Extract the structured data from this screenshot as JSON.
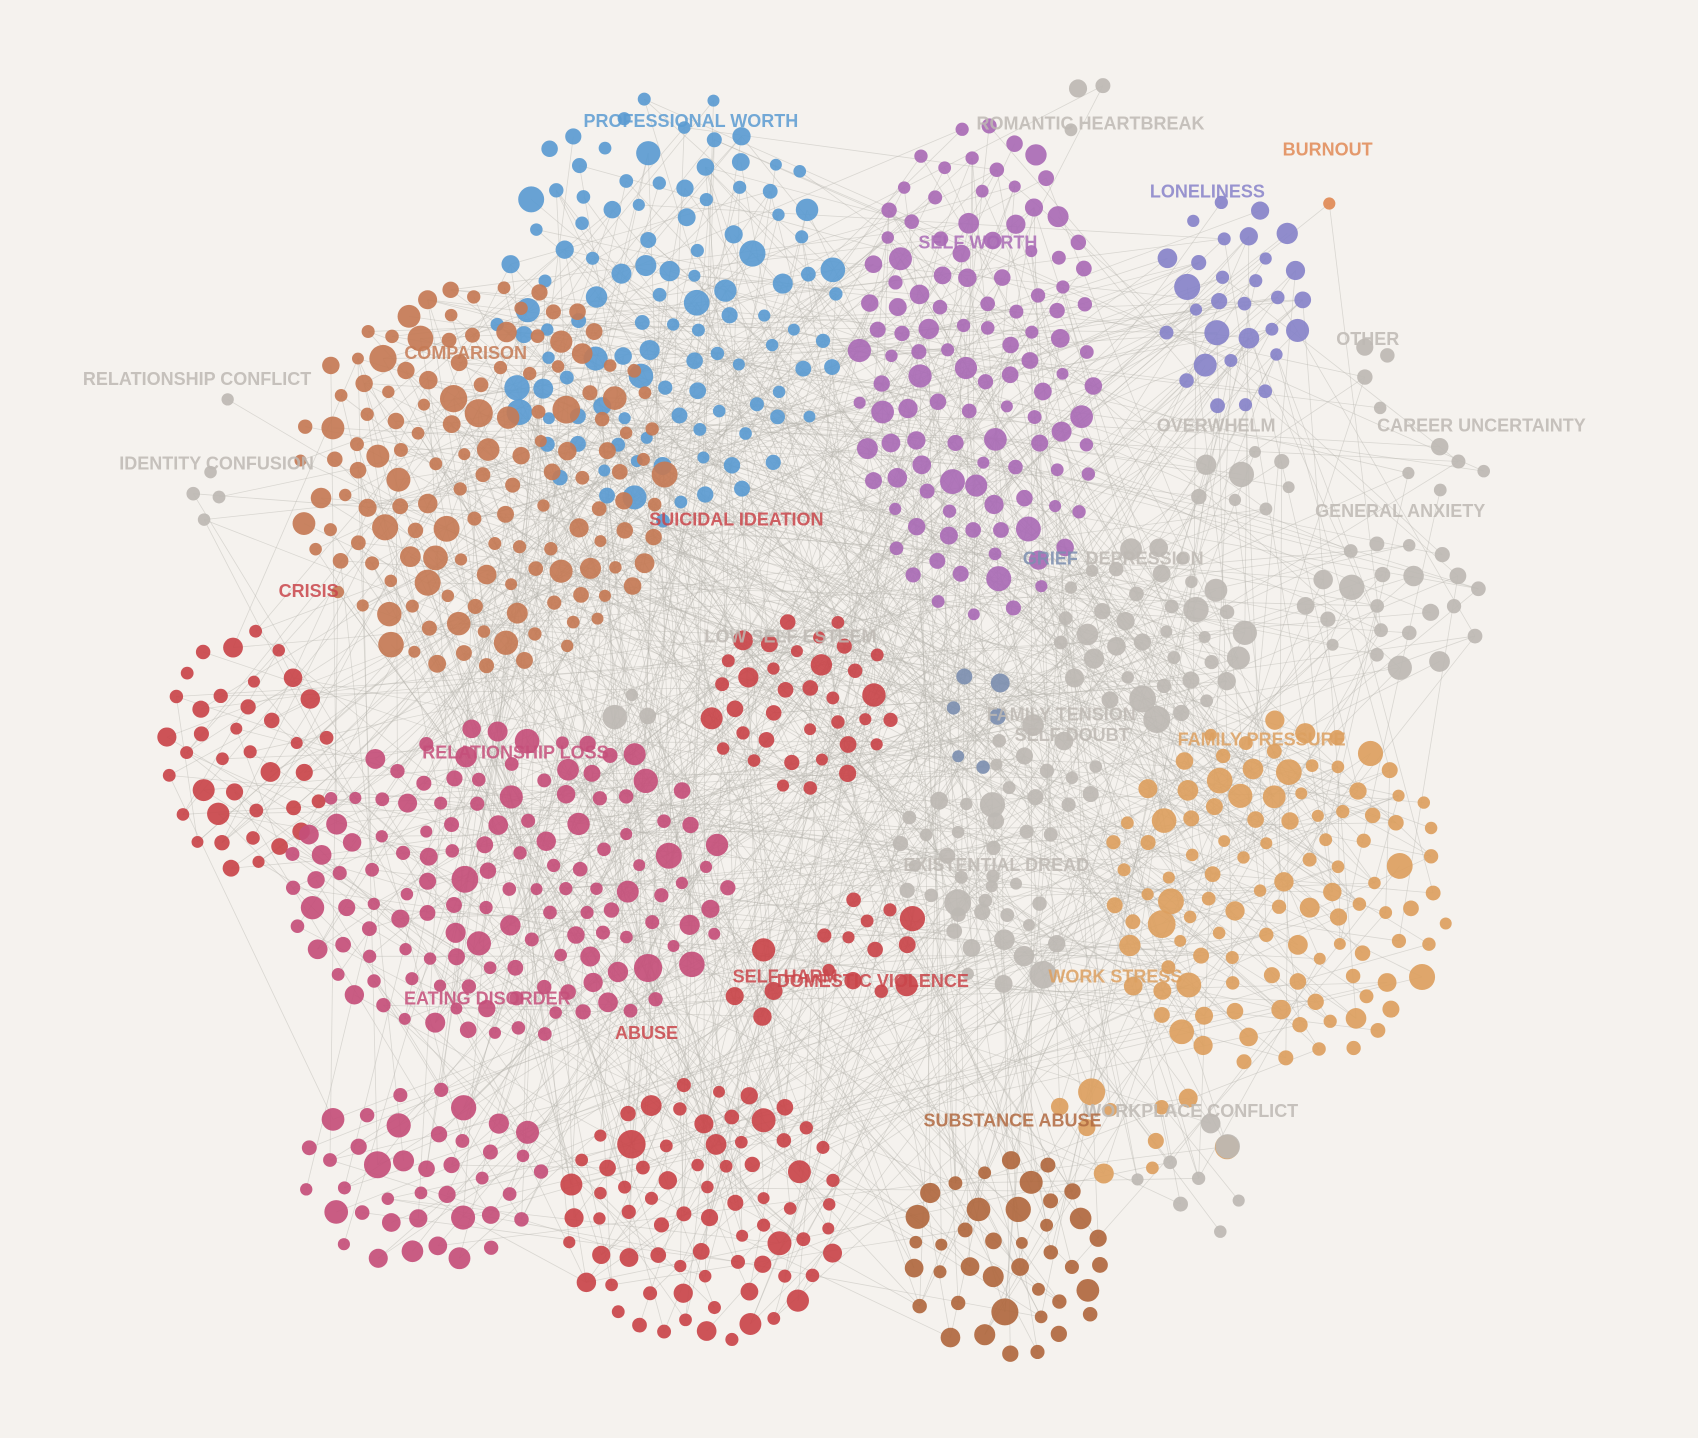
{
  "clusters": [
    {
      "label": "PROFESSIONAL WORTH",
      "color": "#5b9bd1"
    },
    {
      "label": "ROMANTIC HEARTBREAK",
      "color": "#bdb8b3"
    },
    {
      "label": "BURNOUT",
      "color": "#e08a55"
    },
    {
      "label": "LONELINESS",
      "color": "#8783c9"
    },
    {
      "label": "SELF WORTH",
      "color": "#a96bb5"
    },
    {
      "label": "COMPARISON",
      "color": "#c47a55"
    },
    {
      "label": "RELATIONSHIP CONFLICT",
      "color": "#bdb8b3"
    },
    {
      "label": "OTHER",
      "color": "#bdb8b3"
    },
    {
      "label": "OVERWHELM",
      "color": "#bdb8b3"
    },
    {
      "label": "CAREER UNCERTAINTY",
      "color": "#bdb8b3"
    },
    {
      "label": "IDENTITY CONFUSION",
      "color": "#bdb8b3"
    },
    {
      "label": "GENERAL ANXIETY",
      "color": "#bdb8b3"
    },
    {
      "label": "SUICIDAL IDEATION",
      "color": "#c9454a"
    },
    {
      "label": "GRIEF",
      "color": "#7d8fb0"
    },
    {
      "label": "DEPRESSION",
      "color": "#bdb8b3"
    },
    {
      "label": "CRISIS",
      "color": "#c9454a"
    },
    {
      "label": "LOW SELF ESTEEM",
      "color": "#bdb8b3"
    },
    {
      "label": "FAMILY TENSION",
      "color": "#bdb8b3"
    },
    {
      "label": "SELF DOUBT",
      "color": "#bdb8b3"
    },
    {
      "label": "FAMILY PRESSURE",
      "color": "#dca060"
    },
    {
      "label": "RELATIONSHIP LOSS",
      "color": "#c44f7a"
    },
    {
      "label": "EXISTENTIAL DREAD",
      "color": "#bdb8b3"
    },
    {
      "label": "SELF HARM",
      "color": "#c9454a"
    },
    {
      "label": "DOMESTIC VIOLENCE",
      "color": "#c9454a"
    },
    {
      "label": "WORK STRESS",
      "color": "#dca060"
    },
    {
      "label": "EATING DISORDER",
      "color": "#c44f7a"
    },
    {
      "label": "ABUSE",
      "color": "#c9454a"
    },
    {
      "label": "WORKPLACE CONFLICT",
      "color": "#bdb8b3"
    },
    {
      "label": "SUBSTANCE ABUSE",
      "color": "#b0683f"
    }
  ]
}
